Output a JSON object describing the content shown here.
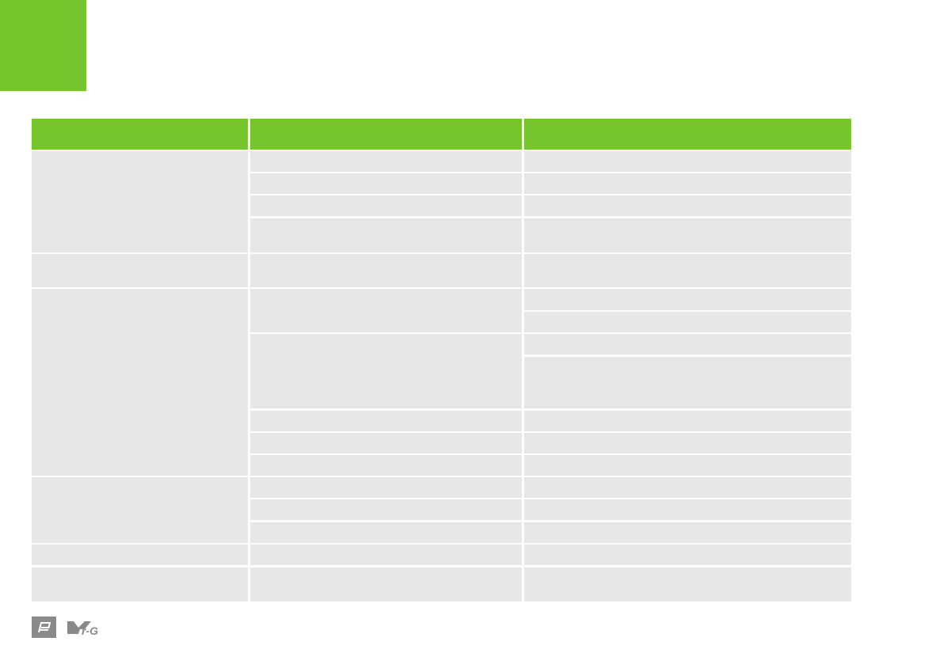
{
  "colors": {
    "accent": "#76c52d",
    "cell": "#e7e7e7",
    "logo": "#8a8a8a"
  },
  "footer": {
    "logos": [
      "e-logo",
      "ymg-logo"
    ]
  }
}
